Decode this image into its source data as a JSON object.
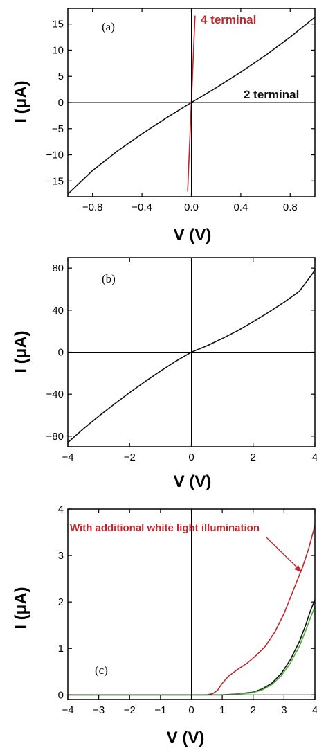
{
  "colors": {
    "black": "#111111",
    "red": "#c0272d",
    "green": "#4caf3a"
  },
  "chart_data": [
    {
      "type": "line",
      "panel_label": "(a)",
      "xlabel": "V (V)",
      "ylabel": "I (μA)",
      "xlim": [
        -1.0,
        1.0
      ],
      "ylim": [
        -18,
        18
      ],
      "xticks": [
        -0.8,
        -0.4,
        0.0,
        0.4,
        0.8
      ],
      "xtick_labels": [
        "−0.8",
        "−0.4",
        "0.0",
        "0.4",
        "0.8"
      ],
      "yticks": [
        -15,
        -10,
        -5,
        0,
        5,
        10,
        15
      ],
      "ytick_labels": [
        "−15",
        "−10",
        "−5",
        "0",
        "5",
        "10",
        "15"
      ],
      "grid": false,
      "series": [
        {
          "name": "2 terminal",
          "color": "#111111",
          "x": [
            -1.0,
            -0.8,
            -0.6,
            -0.4,
            -0.2,
            0.0,
            0.2,
            0.4,
            0.6,
            0.8,
            1.0
          ],
          "y": [
            -17.5,
            -13.0,
            -9.3,
            -6.0,
            -2.9,
            0.0,
            2.8,
            5.8,
            9.0,
            12.5,
            16.3
          ]
        },
        {
          "name": "4 terminal",
          "color": "#c0272d",
          "x": [
            -0.03,
            -0.02,
            -0.01,
            0.0,
            0.01,
            0.02,
            0.03
          ],
          "y": [
            -17,
            -11.2,
            -5.6,
            0.0,
            5.6,
            11.2,
            16.6
          ]
        }
      ],
      "annotations": [
        {
          "text": "4 terminal",
          "color": "#c0272d"
        },
        {
          "text": "2 terminal",
          "color": "#111111"
        }
      ]
    },
    {
      "type": "line",
      "panel_label": "(b)",
      "xlabel": "V (V)",
      "ylabel": "I (μA)",
      "xlim": [
        -4,
        4
      ],
      "ylim": [
        -90,
        90
      ],
      "xticks": [
        -4,
        -2,
        0,
        2,
        4
      ],
      "xtick_labels": [
        "−4",
        "−2",
        "0",
        "2",
        "4"
      ],
      "yticks": [
        -80,
        -40,
        0,
        40,
        80
      ],
      "ytick_labels": [
        "−80",
        "−40",
        "0",
        "40",
        "80"
      ],
      "grid": false,
      "series": [
        {
          "color": "#111111",
          "x": [
            -4,
            -3.5,
            -3,
            -2.5,
            -2,
            -1.5,
            -1,
            -0.5,
            0,
            0.5,
            1,
            1.5,
            2,
            2.5,
            3,
            3.5,
            4
          ],
          "y": [
            -86,
            -73,
            -61,
            -49.5,
            -38.5,
            -28,
            -18,
            -8.5,
            0,
            6,
            13,
            20.5,
            29,
            38,
            47.5,
            58,
            78
          ]
        }
      ]
    },
    {
      "type": "line",
      "panel_label": "(c)",
      "xlabel": "V (V)",
      "ylabel": "I (μA)",
      "xlim": [
        -4,
        4
      ],
      "ylim": [
        -0.1,
        4.0
      ],
      "xticks": [
        -4,
        -3,
        -2,
        -1,
        0,
        1,
        2,
        3,
        4
      ],
      "xtick_labels": [
        "−4",
        "−3",
        "−2",
        "−1",
        "0",
        "1",
        "2",
        "3",
        "4"
      ],
      "yticks": [
        0,
        1,
        2,
        3,
        4
      ],
      "ytick_labels": [
        "0",
        "1",
        "2",
        "3",
        "4"
      ],
      "grid": false,
      "series": [
        {
          "name": "With additional white light illumination",
          "color": "#c0272d",
          "x": [
            -4,
            0,
            0.5,
            0.7,
            0.85,
            1.0,
            1.2,
            1.5,
            1.8,
            2.1,
            2.4,
            2.7,
            3.0,
            3.3,
            3.6,
            3.8,
            4.0
          ],
          "y": [
            0,
            0,
            0.0,
            0.03,
            0.1,
            0.25,
            0.4,
            0.55,
            0.68,
            0.85,
            1.05,
            1.35,
            1.75,
            2.25,
            2.75,
            3.15,
            3.65
          ]
        },
        {
          "color": "#111111",
          "x": [
            -4,
            1.0,
            1.5,
            2.0,
            2.3,
            2.6,
            2.9,
            3.2,
            3.5,
            3.7,
            3.85,
            4.0
          ],
          "y": [
            0,
            0,
            0.02,
            0.06,
            0.13,
            0.25,
            0.45,
            0.75,
            1.15,
            1.5,
            1.8,
            2.05
          ]
        },
        {
          "color": "#4caf3a",
          "x": [
            -4,
            1.0,
            1.5,
            2.0,
            2.3,
            2.6,
            2.9,
            3.2,
            3.5,
            3.7,
            3.85,
            4.0
          ],
          "y": [
            0,
            0,
            0.015,
            0.05,
            0.11,
            0.22,
            0.4,
            0.68,
            1.05,
            1.38,
            1.65,
            1.9
          ]
        }
      ],
      "annotations": [
        {
          "text": "With additional white light illumination",
          "color": "#c0272d"
        }
      ]
    }
  ]
}
